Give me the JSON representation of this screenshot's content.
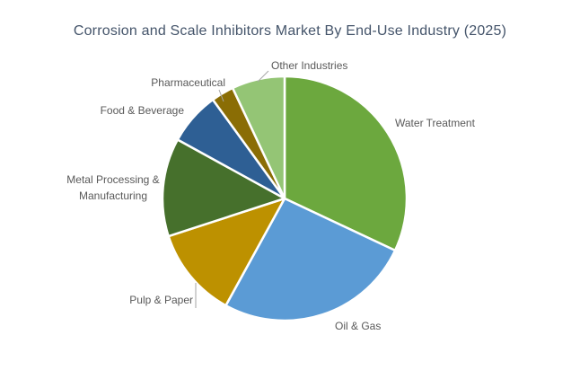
{
  "title": "Corrosion and Scale Inhibitors Market By End-Use Industry (2025)",
  "colors": {
    "title_text": "#44546A",
    "label_text": "#595959",
    "leader_line": "#a6a6a6",
    "background": "#ffffff",
    "slice_border": "#ffffff"
  },
  "chart_data": {
    "type": "pie",
    "title": "Corrosion and Scale Inhibitors Market By End-Use Industry (2025)",
    "start_angle_deg": 0,
    "direction": "clockwise",
    "legend": "none",
    "labels_outside": true,
    "units": "percent share (estimated from slice angles)",
    "slices": [
      {
        "label": "Water Treatment",
        "value": 32,
        "color": "#6CA83E"
      },
      {
        "label": "Oil & Gas",
        "value": 26,
        "color": "#5B9BD5"
      },
      {
        "label": "Pulp & Paper",
        "value": 12,
        "color": "#BD9100"
      },
      {
        "label": "Metal Processing & Manufacturing",
        "value": 13,
        "color": "#46702C"
      },
      {
        "label": "Food & Beverage",
        "value": 7,
        "color": "#2E5F94"
      },
      {
        "label": "Pharmaceutical",
        "value": 3,
        "color": "#8A6D05"
      },
      {
        "label": "Other Industries",
        "value": 7,
        "color": "#94C575"
      }
    ]
  }
}
